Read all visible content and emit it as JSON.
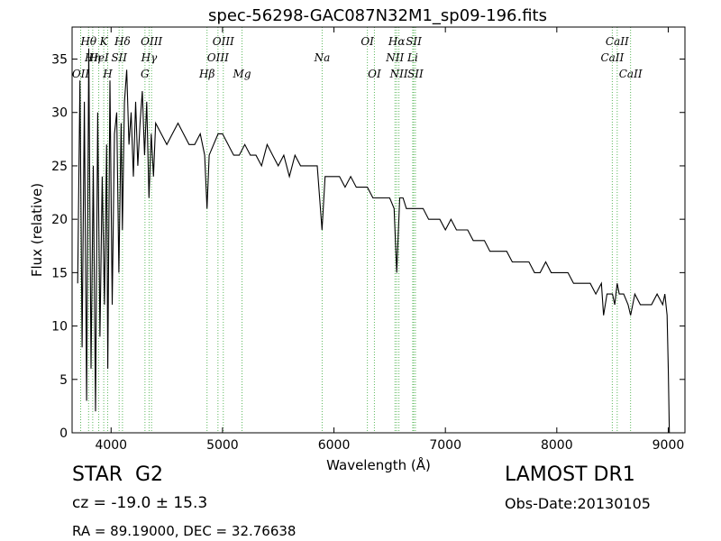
{
  "chart_data": {
    "type": "line",
    "title": "spec-56298-GAC087N32M1_sp09-196.fits",
    "xlabel": "Wavelength (Å)",
    "ylabel": "Flux (relative)",
    "xlim": [
      3650,
      9150
    ],
    "ylim": [
      0,
      38
    ],
    "x_ticks": [
      4000,
      5000,
      6000,
      7000,
      8000,
      9000
    ],
    "y_ticks": [
      0,
      5,
      10,
      15,
      20,
      25,
      30,
      35
    ],
    "grid": false,
    "series": [
      {
        "color": "#000000",
        "x": [
          3700,
          3720,
          3740,
          3760,
          3780,
          3800,
          3820,
          3840,
          3860,
          3880,
          3900,
          3920,
          3940,
          3960,
          3970,
          3990,
          4010,
          4030,
          4050,
          4070,
          4090,
          4101,
          4120,
          4140,
          4160,
          4180,
          4200,
          4220,
          4240,
          4260,
          4280,
          4300,
          4320,
          4340,
          4360,
          4380,
          4400,
          4450,
          4500,
          4550,
          4600,
          4650,
          4700,
          4750,
          4800,
          4840,
          4861,
          4880,
          4920,
          4960,
          5000,
          5050,
          5100,
          5150,
          5200,
          5250,
          5300,
          5350,
          5400,
          5450,
          5500,
          5550,
          5600,
          5650,
          5700,
          5750,
          5800,
          5850,
          5893,
          5920,
          5950,
          6000,
          6050,
          6100,
          6150,
          6200,
          6250,
          6300,
          6350,
          6400,
          6450,
          6500,
          6540,
          6563,
          6590,
          6620,
          6650,
          6700,
          6750,
          6800,
          6850,
          6900,
          6950,
          7000,
          7050,
          7100,
          7150,
          7200,
          7250,
          7300,
          7350,
          7400,
          7450,
          7500,
          7550,
          7600,
          7650,
          7700,
          7750,
          7800,
          7850,
          7900,
          7950,
          8000,
          8050,
          8100,
          8150,
          8200,
          8250,
          8300,
          8350,
          8400,
          8420,
          8450,
          8500,
          8520,
          8542,
          8560,
          8600,
          8640,
          8662,
          8700,
          8750,
          8800,
          8850,
          8900,
          8950,
          8970,
          8990,
          9000,
          9010
        ],
        "y": [
          14,
          33,
          8,
          31,
          3,
          36,
          6,
          25,
          2,
          30,
          9,
          24,
          12,
          27,
          6,
          33,
          12,
          28,
          30,
          15,
          29,
          19,
          31,
          34,
          27,
          30,
          24,
          31,
          25,
          29,
          32,
          26,
          31,
          22,
          28,
          24,
          29,
          28,
          27,
          28,
          29,
          28,
          27,
          27,
          28,
          26,
          21,
          26,
          27,
          28,
          28,
          27,
          26,
          26,
          27,
          26,
          26,
          25,
          27,
          26,
          25,
          26,
          24,
          26,
          25,
          25,
          25,
          25,
          19,
          24,
          24,
          24,
          24,
          23,
          24,
          23,
          23,
          23,
          22,
          22,
          22,
          22,
          21,
          15,
          22,
          22,
          21,
          21,
          21,
          21,
          20,
          20,
          20,
          19,
          20,
          19,
          19,
          19,
          18,
          18,
          18,
          17,
          17,
          17,
          17,
          16,
          16,
          16,
          16,
          15,
          15,
          16,
          15,
          15,
          15,
          15,
          14,
          14,
          14,
          14,
          13,
          14,
          11,
          13,
          13,
          12,
          14,
          13,
          13,
          12,
          11,
          13,
          12,
          12,
          12,
          13,
          12,
          13,
          11,
          6,
          0
        ]
      }
    ],
    "annotations": [
      {
        "label": "OII",
        "x": 3727,
        "row": 2
      },
      {
        "label": "Hθ",
        "x": 3798,
        "row": 0
      },
      {
        "label": "Hη",
        "x": 3835,
        "row": 1
      },
      {
        "label": "HeI",
        "x": 3889,
        "row": 1
      },
      {
        "label": "K",
        "x": 3934,
        "row": 0
      },
      {
        "label": "H",
        "x": 3969,
        "row": 2
      },
      {
        "label": "SII",
        "x": 4072,
        "row": 1
      },
      {
        "label": "Hδ",
        "x": 4102,
        "row": 0
      },
      {
        "label": "G",
        "x": 4304,
        "row": 2
      },
      {
        "label": "Hγ",
        "x": 4341,
        "row": 1
      },
      {
        "label": "OIII",
        "x": 4363,
        "row": 0
      },
      {
        "label": "Hβ",
        "x": 4861,
        "row": 2
      },
      {
        "label": "OIII",
        "x": 4959,
        "row": 1
      },
      {
        "label": "OIII",
        "x": 5007,
        "row": 0
      },
      {
        "label": "Mg",
        "x": 5175,
        "row": 2
      },
      {
        "label": "Na",
        "x": 5894,
        "row": 1
      },
      {
        "label": "OI",
        "x": 6300,
        "row": 0
      },
      {
        "label": "OI",
        "x": 6363,
        "row": 2
      },
      {
        "label": "NII",
        "x": 6548,
        "row": 1
      },
      {
        "label": "Hα",
        "x": 6563,
        "row": 0
      },
      {
        "label": "NII",
        "x": 6583,
        "row": 2
      },
      {
        "label": "Li",
        "x": 6707,
        "row": 1
      },
      {
        "label": "SII",
        "x": 6716,
        "row": 0
      },
      {
        "label": "SII",
        "x": 6731,
        "row": 2
      },
      {
        "label": "CaII",
        "x": 8498,
        "row": 1
      },
      {
        "label": "CaII",
        "x": 8542,
        "row": 0
      },
      {
        "label": "CaII",
        "x": 8662,
        "row": 2
      }
    ]
  },
  "footer": {
    "object_class": "STAR",
    "subclass": "G2",
    "survey": "LAMOST DR1",
    "redshift": "cz = -19.0 ± 15.3",
    "obs_date": "Obs-Date:20130105",
    "coords": "RA = 89.19000, DEC = 32.76638"
  }
}
